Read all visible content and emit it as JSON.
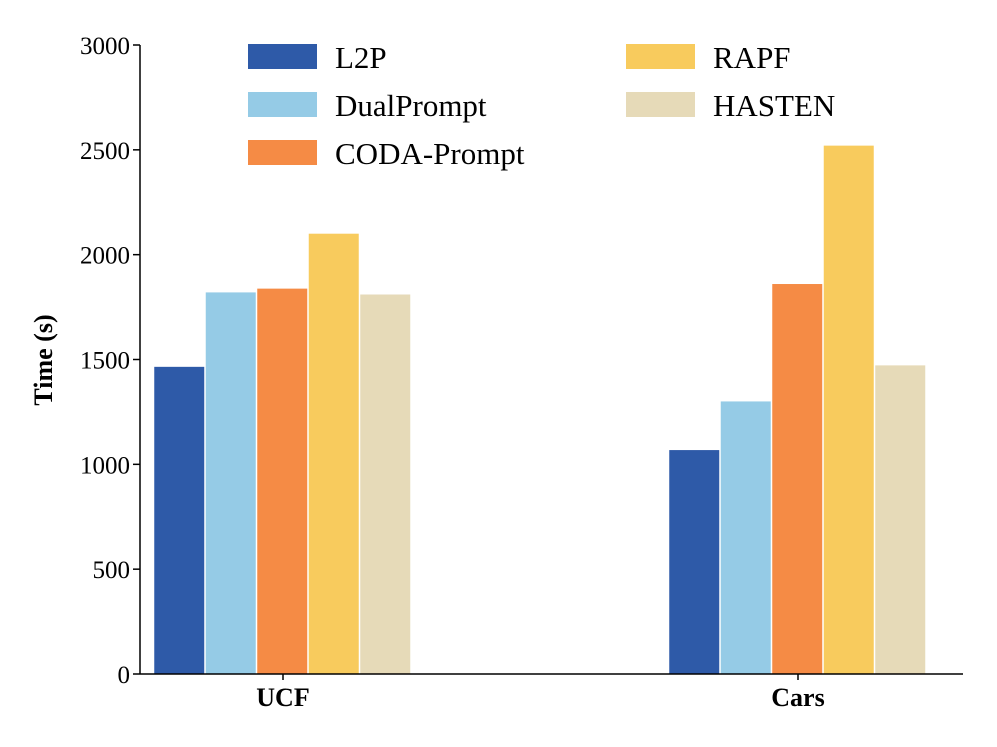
{
  "chart_data": {
    "type": "bar",
    "title": "",
    "xlabel": "",
    "ylabel": "Time (s)",
    "ylim": [
      0,
      3000
    ],
    "yticks": [
      0,
      500,
      1000,
      1500,
      2000,
      2500,
      3000
    ],
    "grid": false,
    "legend_position": "top",
    "categories": [
      "UCF",
      "Cars"
    ],
    "series": [
      {
        "name": "L2P",
        "color": "#2e5aa8",
        "values": [
          1465,
          1068
        ]
      },
      {
        "name": "DualPrompt",
        "color": "#95cbe6",
        "values": [
          1820,
          1300
        ]
      },
      {
        "name": "CODA-Prompt",
        "color": "#f58b45",
        "values": [
          1838,
          1860
        ]
      },
      {
        "name": "RAPF",
        "color": "#f8cb5d",
        "values": [
          2100,
          2520
        ]
      },
      {
        "name": "HASTEN",
        "color": "#e6dab8",
        "values": [
          1810,
          1472
        ]
      }
    ]
  }
}
